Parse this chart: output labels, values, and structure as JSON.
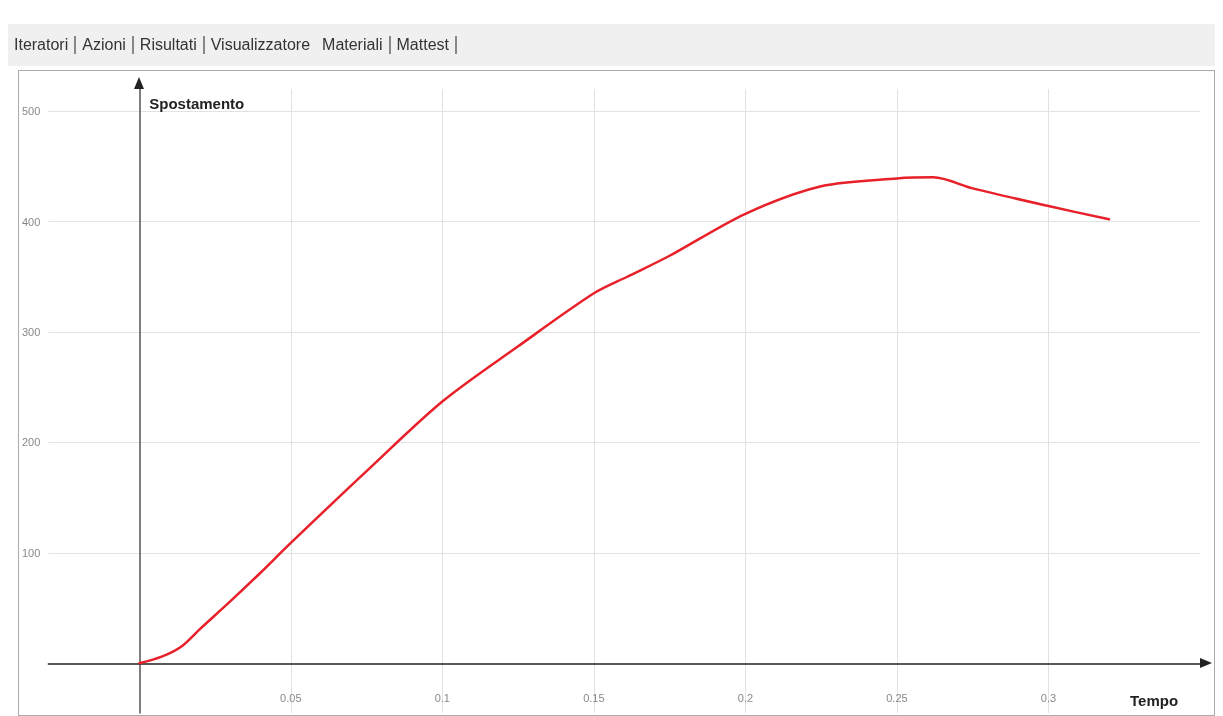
{
  "chart_data": {
    "type": "line",
    "xlabel": "Tempo",
    "ylabel": "Spostamento",
    "annotations": [
      "Iteratori",
      "Azioni",
      "Risultati",
      "Visualizzatore",
      "Materiali",
      "Mattest"
    ],
    "x": [
      0,
      0.0074,
      0.0138,
      0.02,
      0.03,
      0.04,
      0.05,
      0.075,
      0.1,
      0.125,
      0.15,
      0.161,
      0.175,
      0.2,
      0.225,
      0.25,
      0.262,
      0.275,
      0.3,
      0.32
    ],
    "series": [
      {
        "color": "#e8202a",
        "values": [
          0,
          6,
          15,
          31,
          56,
          82,
          109,
          174,
          237,
          287,
          335,
          350,
          369,
          407,
          432,
          439,
          440,
          430,
          414,
          402
        ]
      }
    ],
    "xlim": [
      -0.03,
      0.35
    ],
    "ylim": [
      -45,
      520
    ],
    "xticks": [
      0.05,
      0.1,
      0.15,
      0.2,
      0.25,
      0.3
    ],
    "yticks": [
      100,
      200,
      300,
      400,
      500
    ],
    "grid": true,
    "marker": "none",
    "line_style": "solid"
  }
}
